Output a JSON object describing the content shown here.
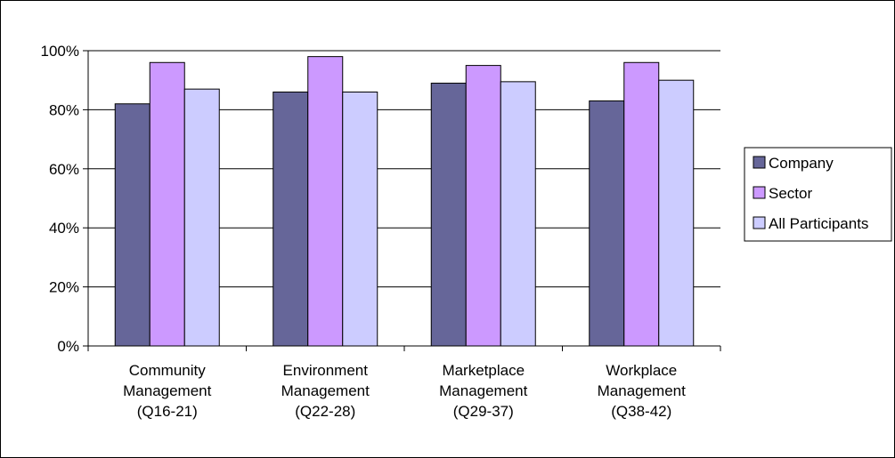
{
  "chart_data": {
    "type": "bar",
    "categories": [
      [
        "Community",
        "Management",
        "(Q16-21)"
      ],
      [
        "Environment",
        "Management",
        "(Q22-28)"
      ],
      [
        "Marketplace",
        "Management",
        "(Q29-37)"
      ],
      [
        "Workplace",
        "Management",
        "(Q38-42)"
      ]
    ],
    "series": [
      {
        "name": "Company",
        "values": [
          82,
          86,
          89,
          83
        ],
        "color": "#666699"
      },
      {
        "name": "Sector",
        "values": [
          96,
          98,
          95,
          96
        ],
        "color": "#cc99ff"
      },
      {
        "name": "All Participants",
        "values": [
          87,
          86,
          89.5,
          90
        ],
        "color": "#ccccff"
      }
    ],
    "yticks": [
      "0%",
      "20%",
      "40%",
      "60%",
      "80%",
      "100%"
    ],
    "ylim": [
      0,
      100
    ],
    "grid": true,
    "legend_position": "right"
  }
}
